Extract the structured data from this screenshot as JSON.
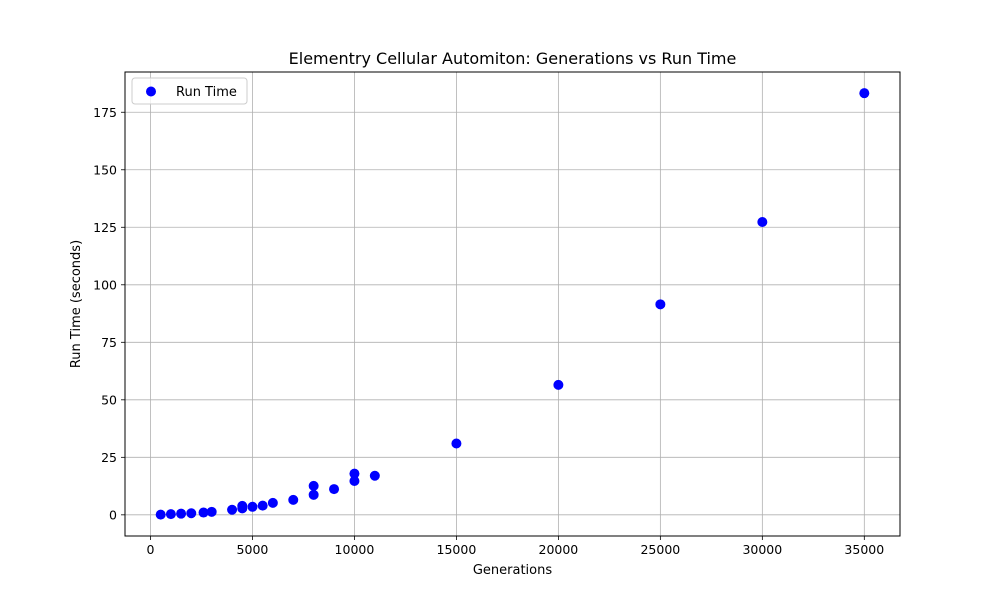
{
  "chart_data": {
    "type": "scatter",
    "title": "Elementry Cellular Automiton: Generations vs Run Time",
    "xlabel": "Generations",
    "ylabel": "Run Time (seconds)",
    "xlim": [
      -1250,
      36750
    ],
    "ylim": [
      -9.2,
      192.5
    ],
    "xticks": [
      0,
      5000,
      10000,
      15000,
      20000,
      25000,
      30000,
      35000
    ],
    "yticks": [
      0,
      25,
      50,
      75,
      100,
      125,
      150,
      175
    ],
    "grid": true,
    "legend_position": "top-left",
    "series": [
      {
        "name": "Run Time",
        "color": "#0000ff",
        "points": [
          [
            500,
            0.1
          ],
          [
            1000,
            0.3
          ],
          [
            1500,
            0.5
          ],
          [
            2000,
            0.7
          ],
          [
            2600,
            1.0
          ],
          [
            3000,
            1.3
          ],
          [
            4000,
            2.2
          ],
          [
            4500,
            2.8
          ],
          [
            4500,
            3.9
          ],
          [
            5000,
            3.5
          ],
          [
            5500,
            4.0
          ],
          [
            6000,
            5.2
          ],
          [
            7000,
            6.5
          ],
          [
            8000,
            8.7
          ],
          [
            8000,
            12.6
          ],
          [
            9000,
            11.2
          ],
          [
            10000,
            14.7
          ],
          [
            10000,
            17.9
          ],
          [
            11000,
            17.0
          ],
          [
            15000,
            31.0
          ],
          [
            20000,
            56.5
          ],
          [
            25000,
            91.5
          ],
          [
            30000,
            127.3
          ],
          [
            35000,
            183.3
          ]
        ]
      }
    ]
  }
}
